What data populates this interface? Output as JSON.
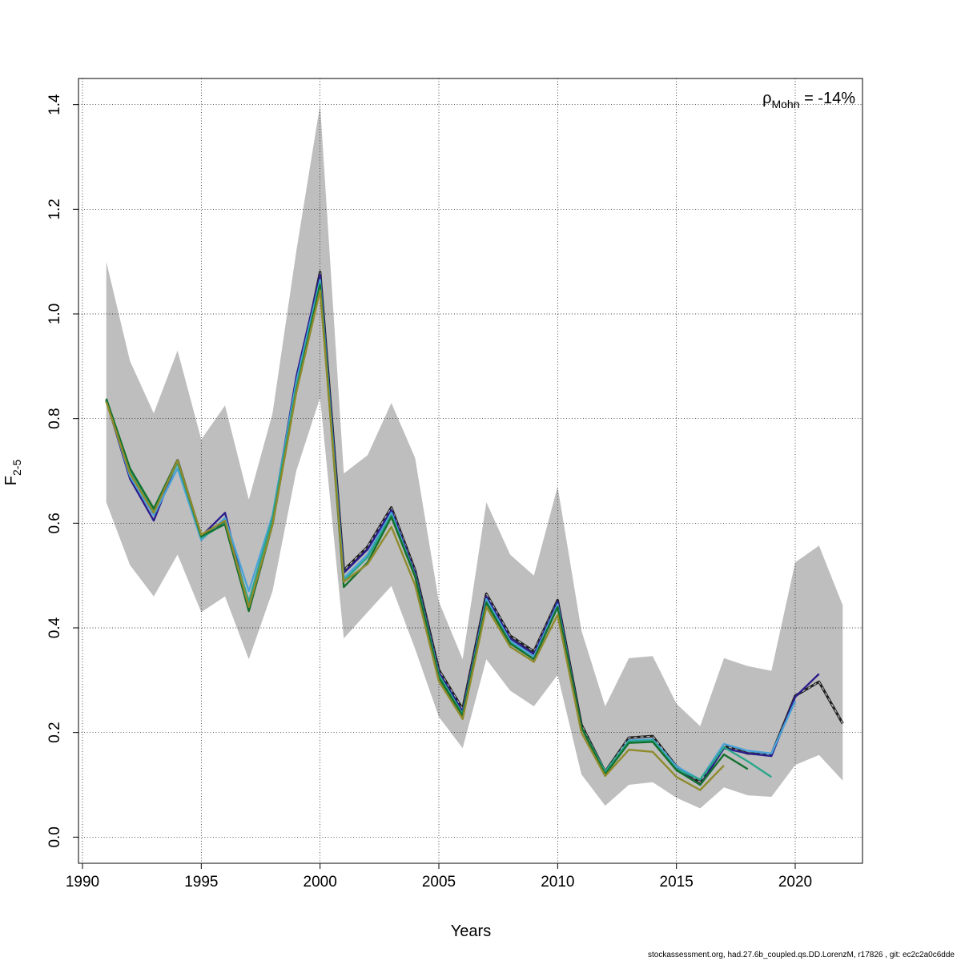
{
  "chart_data": {
    "type": "line",
    "xlabel": "Years",
    "ylabel_main": "F",
    "ylabel_sub": "2-5",
    "xlim": [
      1990,
      2023
    ],
    "ylim": [
      -0.05,
      1.45
    ],
    "x_ticks": [
      1990,
      1995,
      2000,
      2005,
      2010,
      2015,
      2020
    ],
    "y_ticks": [
      0.0,
      0.2,
      0.4,
      0.6,
      0.8,
      1.0,
      1.2,
      1.4
    ],
    "x_tick_labels": [
      "1990",
      "1995",
      "2000",
      "2005",
      "2010",
      "2015",
      "2020"
    ],
    "y_tick_labels": [
      "0.0",
      "0.2",
      "0.4",
      "0.6",
      "0.8",
      "1.0",
      "1.2",
      "1.4"
    ],
    "grid": true,
    "annotation": {
      "rho": "ρ",
      "sub": "Mohn",
      "value": " = -14%"
    },
    "confidence_band": {
      "x": [
        1991,
        1992,
        1993,
        1994,
        1995,
        1996,
        1997,
        1998,
        1999,
        2000,
        2001,
        2002,
        2003,
        2004,
        2005,
        2006,
        2007,
        2008,
        2009,
        2010,
        2011,
        2012,
        2013,
        2014,
        2015,
        2016,
        2017,
        2018,
        2019,
        2020,
        2021,
        2022
      ],
      "lower": [
        0.64,
        0.52,
        0.46,
        0.54,
        0.43,
        0.46,
        0.34,
        0.47,
        0.7,
        0.84,
        0.38,
        0.43,
        0.48,
        0.36,
        0.23,
        0.17,
        0.34,
        0.28,
        0.25,
        0.31,
        0.12,
        0.06,
        0.1,
        0.105,
        0.075,
        0.055,
        0.095,
        0.08,
        0.077,
        0.138,
        0.157,
        0.108
      ],
      "upper": [
        1.1,
        0.91,
        0.81,
        0.93,
        0.76,
        0.825,
        0.645,
        0.81,
        1.12,
        1.4,
        0.695,
        0.73,
        0.83,
        0.725,
        0.45,
        0.34,
        0.64,
        0.54,
        0.5,
        0.67,
        0.395,
        0.25,
        0.342,
        0.346,
        0.255,
        0.212,
        0.342,
        0.327,
        0.318,
        0.525,
        0.557,
        0.443
      ],
      "color": "#bebebe"
    },
    "series": [
      {
        "color": "#1f1f1f",
        "dashed": true,
        "values": [
          0.835,
          0.7,
          0.625,
          0.72,
          0.575,
          0.6,
          0.435,
          0.6,
          0.86,
          1.08,
          0.51,
          0.555,
          0.63,
          0.51,
          0.32,
          0.245,
          0.465,
          0.385,
          0.355,
          0.453,
          0.215,
          0.125,
          0.19,
          0.193,
          0.135,
          0.105,
          0.175,
          0.16,
          0.158,
          0.27,
          0.297,
          0.217
        ]
      },
      {
        "color": "#2b1d8c",
        "dashed": false,
        "values": [
          0.835,
          0.685,
          0.605,
          0.72,
          0.575,
          0.62,
          0.44,
          0.61,
          0.88,
          1.075,
          0.505,
          0.55,
          0.625,
          0.505,
          0.315,
          0.24,
          0.46,
          0.38,
          0.35,
          0.45,
          0.21,
          0.12,
          0.183,
          0.186,
          0.13,
          0.1,
          0.17,
          0.16,
          0.155,
          0.268,
          0.312
        ]
      },
      {
        "color": "#4aa3d8",
        "dashed": false,
        "values": [
          0.835,
          0.69,
          0.615,
          0.705,
          0.568,
          0.61,
          0.47,
          0.615,
          0.87,
          1.065,
          0.495,
          0.54,
          0.62,
          0.5,
          0.31,
          0.235,
          0.455,
          0.375,
          0.345,
          0.445,
          0.21,
          0.125,
          0.185,
          0.187,
          0.135,
          0.11,
          0.178,
          0.165,
          0.16,
          0.26
        ]
      },
      {
        "color": "#2aa68a",
        "dashed": false,
        "values": [
          0.835,
          0.7,
          0.625,
          0.715,
          0.572,
          0.6,
          0.45,
          0.61,
          0.86,
          1.06,
          0.49,
          0.535,
          0.615,
          0.5,
          0.31,
          0.235,
          0.45,
          0.372,
          0.34,
          0.44,
          0.21,
          0.125,
          0.183,
          0.185,
          0.13,
          0.11,
          0.172,
          0.145,
          0.115
        ]
      },
      {
        "color": "#13702e",
        "dashed": false,
        "values": [
          0.838,
          0.705,
          0.628,
          0.72,
          0.575,
          0.598,
          0.432,
          0.598,
          0.852,
          1.055,
          0.478,
          0.525,
          0.612,
          0.498,
          0.305,
          0.232,
          0.448,
          0.37,
          0.34,
          0.44,
          0.21,
          0.12,
          0.18,
          0.182,
          0.128,
          0.1,
          0.158,
          0.13
        ]
      },
      {
        "color": "#8f8b2c",
        "dashed": false,
        "values": [
          0.832,
          0.695,
          0.62,
          0.72,
          0.578,
          0.605,
          0.44,
          0.597,
          0.85,
          1.045,
          0.488,
          0.522,
          0.593,
          0.482,
          0.298,
          0.226,
          0.44,
          0.364,
          0.335,
          0.425,
          0.2,
          0.117,
          0.167,
          0.163,
          0.115,
          0.09,
          0.137
        ]
      }
    ]
  },
  "footer": {
    "text": "stockassessment.org, had.27.6b_coupled.qs.DD.LorenzM, r17826 , git: ec2c2a0c6dde"
  }
}
